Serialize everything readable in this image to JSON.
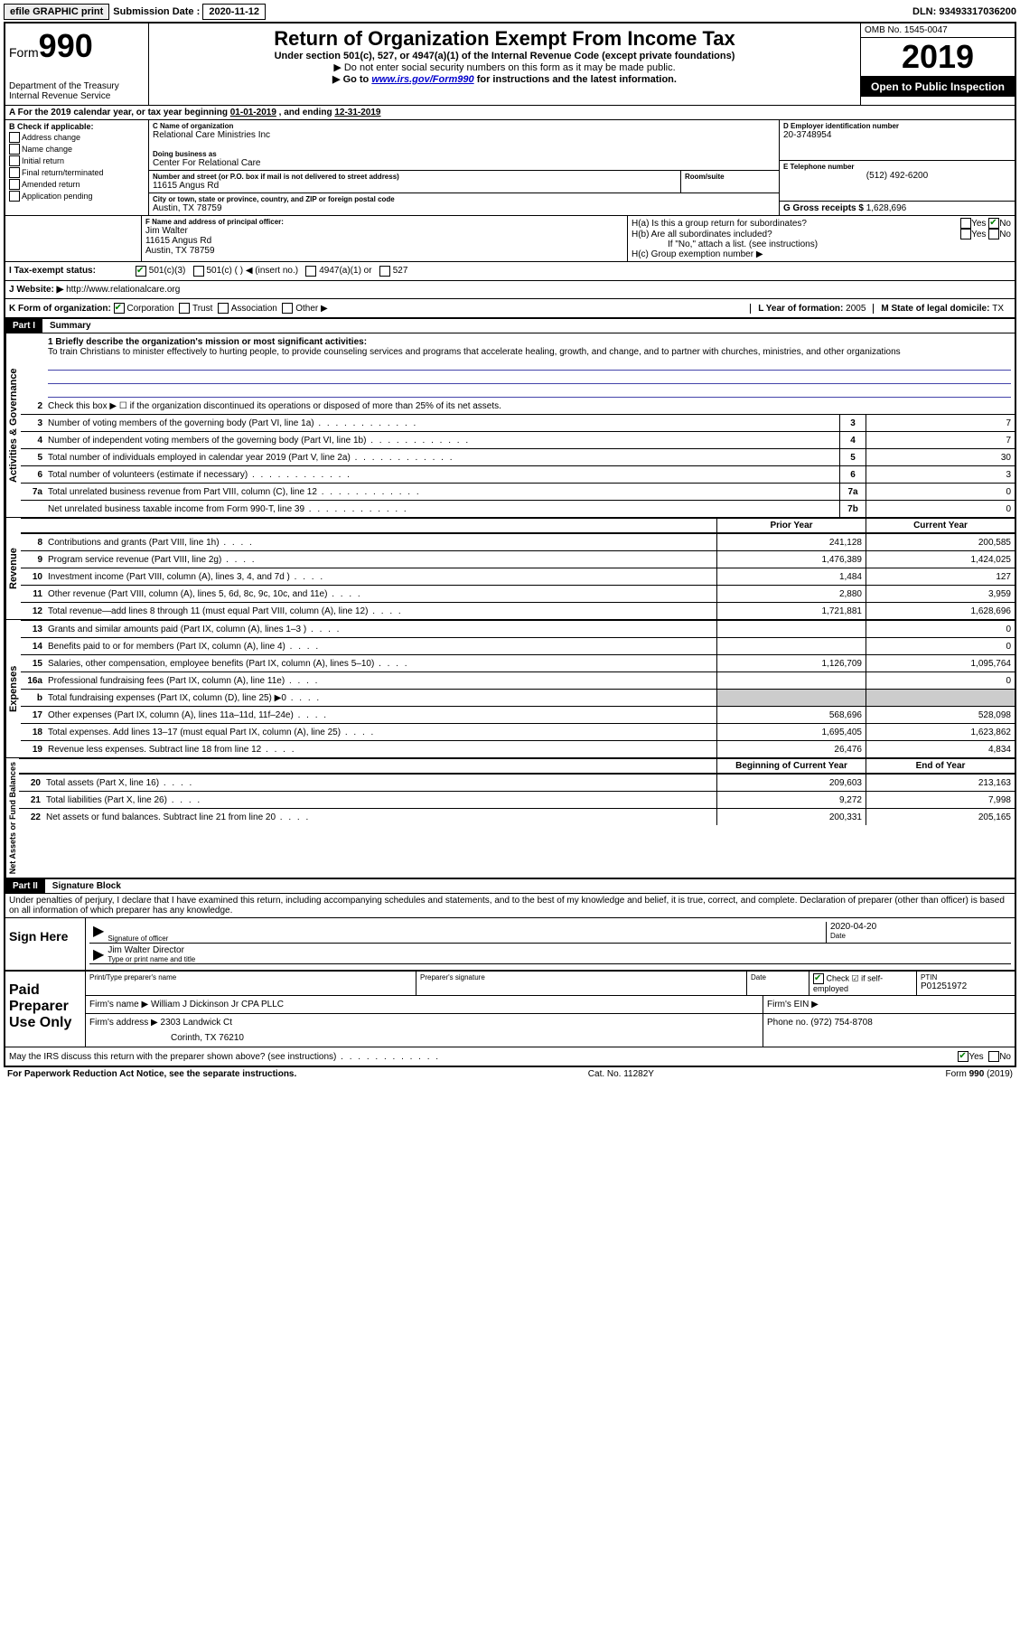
{
  "top": {
    "efile": "efile GRAPHIC print",
    "sub_label": "Submission Date : ",
    "sub_date": "2020-11-12",
    "dln_label": "DLN: ",
    "dln": "93493317036200"
  },
  "header": {
    "form_word": "Form",
    "form_num": "990",
    "dept": "Department of the Treasury\nInternal Revenue Service",
    "title": "Return of Organization Exempt From Income Tax",
    "sub1": "Under section 501(c), 527, or 4947(a)(1) of the Internal Revenue Code (except private foundations)",
    "sub2": "▶ Do not enter social security numbers on this form as it may be made public.",
    "sub3a": "▶ Go to ",
    "sub3_link": "www.irs.gov/Form990",
    "sub3b": " for instructions and the latest information.",
    "omb": "OMB No. 1545-0047",
    "year": "2019",
    "open": "Open to Public Inspection"
  },
  "rowA": {
    "text_a": "A For the 2019 calendar year, or tax year beginning ",
    "begin": "01-01-2019",
    "text_b": "   , and ending ",
    "end": "12-31-2019"
  },
  "boxB": {
    "label": "B Check if applicable:",
    "opts": [
      "Address change",
      "Name change",
      "Initial return",
      "Final return/terminated",
      "Amended return",
      "Application pending"
    ]
  },
  "boxC": {
    "label": "C Name of organization",
    "name": "Relational Care Ministries Inc",
    "dba_label": "Doing business as",
    "dba": "Center For Relational Care",
    "addr_label": "Number and street (or P.O. box if mail is not delivered to street address)",
    "room_label": "Room/suite",
    "addr": "11615 Angus Rd",
    "city_label": "City or town, state or province, country, and ZIP or foreign postal code",
    "city": "Austin, TX  78759"
  },
  "boxD": {
    "label": "D Employer identification number",
    "ein": "20-3748954"
  },
  "boxE": {
    "label": "E Telephone number",
    "phone": "(512) 492-6200"
  },
  "boxG": {
    "label": "G Gross receipts $ ",
    "val": "1,628,696"
  },
  "boxF": {
    "label": "F Name and address of principal officer:",
    "name": "Jim Walter",
    "addr1": "11615 Angus Rd",
    "addr2": "Austin, TX  78759"
  },
  "boxH": {
    "a": "H(a)   Is this a group return for subordinates?",
    "b": "H(b)   Are all subordinates included?",
    "b_note": "If \"No,\" attach a list. (see instructions)",
    "c": "H(c)   Group exemption number ▶",
    "yes": "Yes",
    "no": "No"
  },
  "rowI": {
    "label": "I   Tax-exempt status:",
    "opts": [
      "501(c)(3)",
      "501(c) (  ) ◀ (insert no.)",
      "4947(a)(1) or",
      "527"
    ]
  },
  "rowJ": {
    "label": "J   Website: ▶",
    "url": "http://www.relationalcare.org"
  },
  "rowK": {
    "label": "K Form of organization:",
    "opts": [
      "Corporation",
      "Trust",
      "Association",
      "Other ▶"
    ]
  },
  "rowL": {
    "label": "L Year of formation: ",
    "val": "2005"
  },
  "rowM": {
    "label": "M State of legal domicile: ",
    "val": "TX"
  },
  "part1": {
    "label": "Part I",
    "title": "Summary",
    "q1_label": "1 Briefly describe the organization's mission or most significant activities:",
    "q1_text": "To train Christians to minister effectively to hurting people, to provide counseling services and programs that accelerate healing, growth, and change, and to partner with churches, ministries, and other organizations",
    "q2": "Check this box ▶ ☐  if the organization discontinued its operations or disposed of more than 25% of its net assets.",
    "sections": {
      "gov_label": "Activities & Governance",
      "rev_label": "Revenue",
      "exp_label": "Expenses",
      "net_label": "Net Assets or Fund Balances"
    },
    "gov_lines": [
      {
        "n": "3",
        "t": "Number of voting members of the governing body (Part VI, line 1a)",
        "box": "3",
        "v": "7"
      },
      {
        "n": "4",
        "t": "Number of independent voting members of the governing body (Part VI, line 1b)",
        "box": "4",
        "v": "7"
      },
      {
        "n": "5",
        "t": "Total number of individuals employed in calendar year 2019 (Part V, line 2a)",
        "box": "5",
        "v": "30"
      },
      {
        "n": "6",
        "t": "Total number of volunteers (estimate if necessary)",
        "box": "6",
        "v": "3"
      },
      {
        "n": "7a",
        "t": "Total unrelated business revenue from Part VIII, column (C), line 12",
        "box": "7a",
        "v": "0"
      },
      {
        "n": "",
        "t": "Net unrelated business taxable income from Form 990-T, line 39",
        "box": "7b",
        "v": "0"
      }
    ],
    "col_headers": {
      "prior": "Prior Year",
      "current": "Current Year",
      "begin": "Beginning of Current Year",
      "end": "End of Year"
    },
    "rev_lines": [
      {
        "n": "8",
        "t": "Contributions and grants (Part VIII, line 1h)",
        "p": "241,128",
        "c": "200,585"
      },
      {
        "n": "9",
        "t": "Program service revenue (Part VIII, line 2g)",
        "p": "1,476,389",
        "c": "1,424,025"
      },
      {
        "n": "10",
        "t": "Investment income (Part VIII, column (A), lines 3, 4, and 7d )",
        "p": "1,484",
        "c": "127"
      },
      {
        "n": "11",
        "t": "Other revenue (Part VIII, column (A), lines 5, 6d, 8c, 9c, 10c, and 11e)",
        "p": "2,880",
        "c": "3,959"
      },
      {
        "n": "12",
        "t": "Total revenue—add lines 8 through 11 (must equal Part VIII, column (A), line 12)",
        "p": "1,721,881",
        "c": "1,628,696"
      }
    ],
    "exp_lines": [
      {
        "n": "13",
        "t": "Grants and similar amounts paid (Part IX, column (A), lines 1–3 )",
        "p": "",
        "c": "0"
      },
      {
        "n": "14",
        "t": "Benefits paid to or for members (Part IX, column (A), line 4)",
        "p": "",
        "c": "0"
      },
      {
        "n": "15",
        "t": "Salaries, other compensation, employee benefits (Part IX, column (A), lines 5–10)",
        "p": "1,126,709",
        "c": "1,095,764"
      },
      {
        "n": "16a",
        "t": "Professional fundraising fees (Part IX, column (A), line 11e)",
        "p": "",
        "c": "0"
      },
      {
        "n": "b",
        "t": "Total fundraising expenses (Part IX, column (D), line 25) ▶0",
        "p": "SHADE",
        "c": "SHADE"
      },
      {
        "n": "17",
        "t": "Other expenses (Part IX, column (A), lines 11a–11d, 11f–24e)",
        "p": "568,696",
        "c": "528,098"
      },
      {
        "n": "18",
        "t": "Total expenses. Add lines 13–17 (must equal Part IX, column (A), line 25)",
        "p": "1,695,405",
        "c": "1,623,862"
      },
      {
        "n": "19",
        "t": "Revenue less expenses. Subtract line 18 from line 12",
        "p": "26,476",
        "c": "4,834"
      }
    ],
    "net_lines": [
      {
        "n": "20",
        "t": "Total assets (Part X, line 16)",
        "p": "209,603",
        "c": "213,163"
      },
      {
        "n": "21",
        "t": "Total liabilities (Part X, line 26)",
        "p": "9,272",
        "c": "7,998"
      },
      {
        "n": "22",
        "t": "Net assets or fund balances. Subtract line 21 from line 20",
        "p": "200,331",
        "c": "205,165"
      }
    ]
  },
  "part2": {
    "label": "Part II",
    "title": "Signature Block",
    "decl": "Under penalties of perjury, I declare that I have examined this return, including accompanying schedules and statements, and to the best of my knowledge and belief, it is true, correct, and complete. Declaration of preparer (other than officer) is based on all information of which preparer has any knowledge.",
    "sign_here": "Sign Here",
    "sig_officer": "Signature of officer",
    "date_label": "Date",
    "date_val": "2020-04-20",
    "name_title": "Jim Walter  Director",
    "name_label": "Type or print name and title",
    "paid": "Paid Preparer Use Only",
    "prep_name_label": "Print/Type preparer's name",
    "prep_sig_label": "Preparer's signature",
    "check_if": "Check ☑ if self-employed",
    "ptin_label": "PTIN",
    "ptin": "P01251972",
    "firm_name_label": "Firm's name   ▶",
    "firm_name": "William J Dickinson Jr CPA PLLC",
    "firm_ein_label": "Firm's EIN ▶",
    "firm_addr_label": "Firm's address ▶",
    "firm_addr": "2303 Landwick Ct",
    "firm_city": "Corinth, TX  76210",
    "phone_label": "Phone no. ",
    "phone": "(972) 754-8708",
    "discuss": "May the IRS discuss this return with the preparer shown above? (see instructions)"
  },
  "footer": {
    "left": "For Paperwork Reduction Act Notice, see the separate instructions.",
    "mid": "Cat. No. 11282Y",
    "right": "Form 990 (2019)"
  }
}
